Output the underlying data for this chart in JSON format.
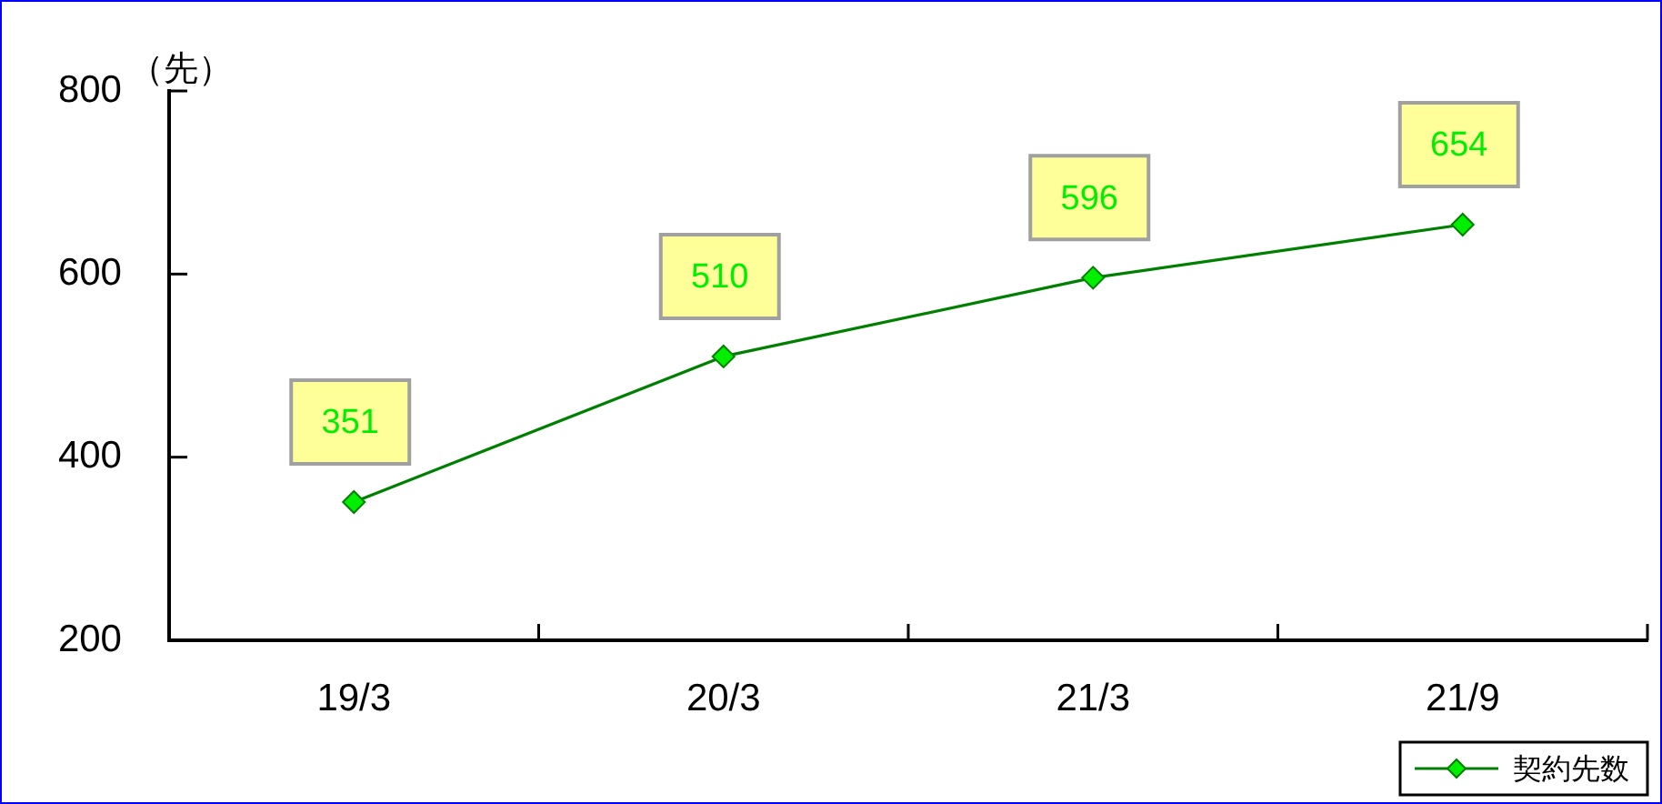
{
  "chart_data": {
    "type": "line",
    "ylabel": "（先）",
    "categories": [
      "19/3",
      "20/3",
      "21/3",
      "21/9"
    ],
    "series": [
      {
        "name": "契約先数",
        "color": "#008000",
        "values": [
          351,
          510,
          596,
          654
        ]
      }
    ],
    "ylim": [
      200,
      800
    ],
    "yticks": [
      200,
      400,
      600,
      800
    ],
    "data_labels": true,
    "legend": "bottom right",
    "marker": "diamond",
    "line_style": "solid"
  }
}
